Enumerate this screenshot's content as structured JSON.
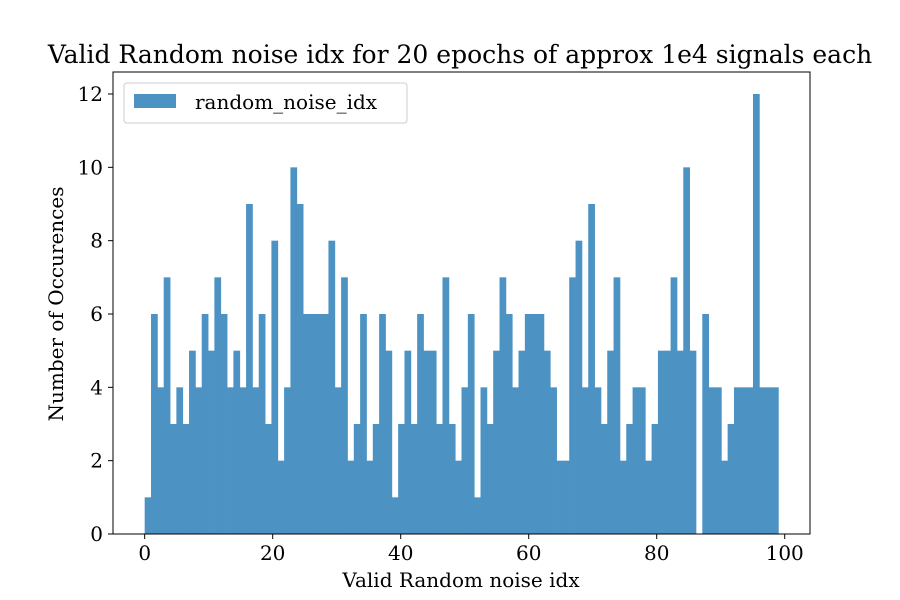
{
  "chart_data": {
    "type": "bar",
    "title": "Valid Random noise idx for 20 epochs of approx 1e4 signals each",
    "xlabel": "Valid Random noise idx",
    "ylabel": "Number of Occurences",
    "xlim": [
      -4.95,
      103.95
    ],
    "ylim": [
      0,
      12.6
    ],
    "xticks": [
      0,
      20,
      40,
      60,
      80,
      100
    ],
    "yticks": [
      0,
      2,
      4,
      6,
      8,
      10,
      12
    ],
    "legend": {
      "position": "top-left",
      "entries": [
        "random_noise_idx"
      ]
    },
    "grid": false,
    "bar_color": "#4c93c3",
    "series": [
      {
        "name": "random_noise_idx",
        "bin_start": 0,
        "bin_width": 0.99,
        "values": [
          1,
          6,
          4,
          7,
          3,
          4,
          3,
          5,
          4,
          6,
          5,
          7,
          6,
          4,
          5,
          4,
          9,
          4,
          6,
          3,
          8,
          2,
          4,
          10,
          9,
          6,
          6,
          6,
          6,
          8,
          4,
          7,
          2,
          3,
          6,
          2,
          3,
          6,
          5,
          1,
          3,
          5,
          3,
          6,
          5,
          5,
          3,
          7,
          3,
          2,
          4,
          6,
          1,
          4,
          3,
          5,
          7,
          6,
          4,
          5,
          6,
          6,
          6,
          5,
          4,
          2,
          2,
          7,
          8,
          4,
          9,
          4,
          3,
          5,
          7,
          2,
          3,
          4,
          4,
          2,
          3,
          5,
          5,
          7,
          5,
          10,
          5,
          0,
          6,
          4,
          4,
          2,
          3,
          4,
          4,
          4,
          12,
          4,
          4,
          4
        ]
      }
    ]
  }
}
